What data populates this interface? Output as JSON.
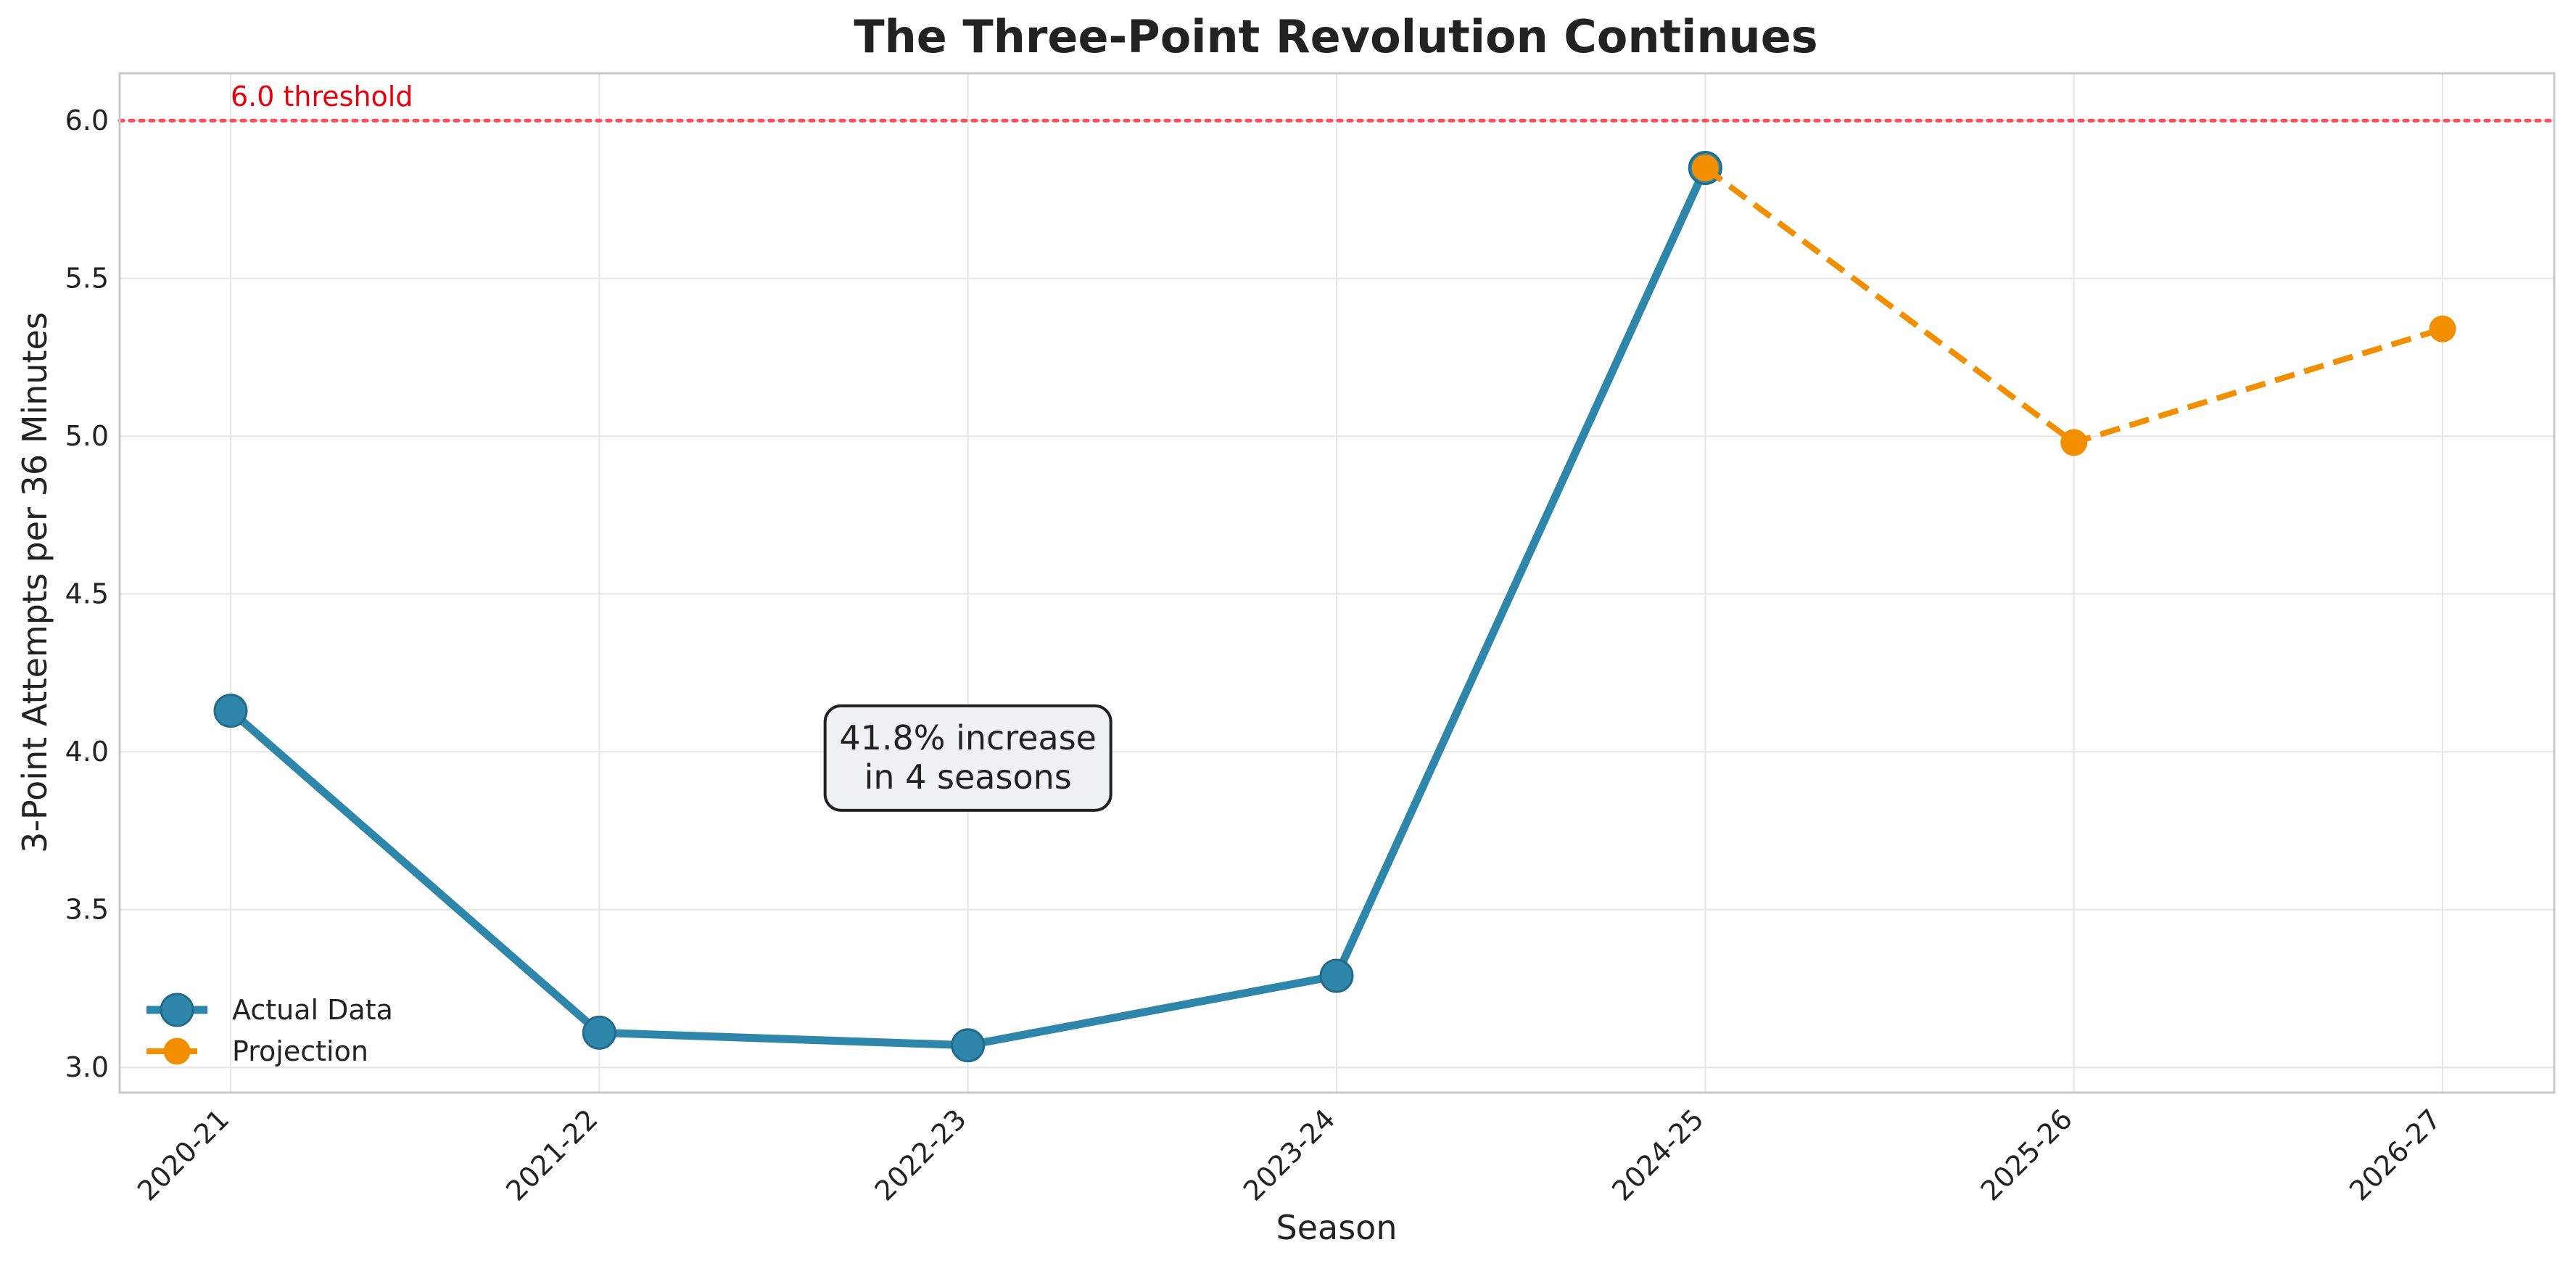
{
  "chart_data": {
    "type": "line",
    "title": "The Three-Point Revolution Continues",
    "xlabel": "Season",
    "ylabel": "3-Point Attempts per 36 Minutes",
    "categories": [
      "2020-21",
      "2021-22",
      "2022-23",
      "2023-24",
      "2024-25",
      "2025-26",
      "2026-27"
    ],
    "ylim": [
      2.92,
      6.15
    ],
    "yticks": [
      3.0,
      3.5,
      4.0,
      4.5,
      5.0,
      5.5,
      6.0
    ],
    "ytick_labels": [
      "3.0",
      "3.5",
      "4.0",
      "4.5",
      "5.0",
      "5.5",
      "6.0"
    ],
    "grid": true,
    "legend_position": "lower-left",
    "series": [
      {
        "name": "Actual Data",
        "color": "#2e86ab",
        "style": "solid",
        "points": [
          {
            "x": "2020-21",
            "y": 4.13
          },
          {
            "x": "2021-22",
            "y": 3.11
          },
          {
            "x": "2022-23",
            "y": 3.07
          },
          {
            "x": "2023-24",
            "y": 3.29
          },
          {
            "x": "2024-25",
            "y": 5.85
          }
        ]
      },
      {
        "name": "Projection",
        "color": "#f18f01",
        "style": "dashed",
        "points": [
          {
            "x": "2024-25",
            "y": 5.85
          },
          {
            "x": "2025-26",
            "y": 4.98
          },
          {
            "x": "2026-27",
            "y": 5.34
          }
        ]
      }
    ],
    "reference_line": {
      "y": 6.0,
      "label": "6.0 threshold",
      "color": "#ff4d5e",
      "label_color": "#e8000b"
    },
    "annotation": {
      "lines": [
        "41.8% increase",
        "in 4 seasons"
      ],
      "x": "2022-23",
      "y": 3.98
    }
  }
}
